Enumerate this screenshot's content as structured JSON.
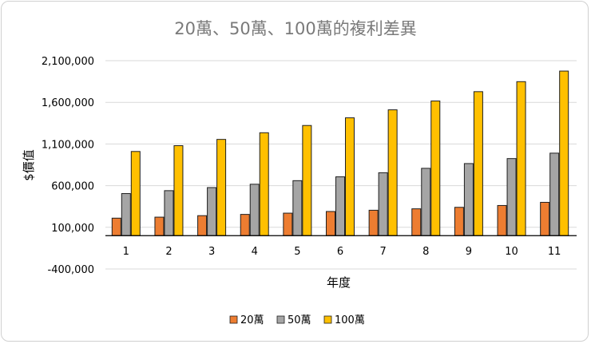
{
  "chart_data": {
    "type": "bar",
    "title": "20萬、50萬、100萬的複利差異",
    "xlabel": "年度",
    "ylabel": "$價值",
    "categories": [
      "1",
      "2",
      "3",
      "4",
      "5",
      "6",
      "7",
      "8",
      "9",
      "10",
      "11"
    ],
    "y_ticks": [
      "2,100,000",
      "1,600,000",
      "1,100,000",
      "600,000",
      "100,000",
      "-400,000"
    ],
    "ylim": [
      -400000,
      2100000
    ],
    "baseline": 0,
    "grid": true,
    "legend_position": "bottom",
    "series": [
      {
        "name": "20萬",
        "color": "#ED7D31",
        "values": [
          210000,
          222000,
          240000,
          255000,
          270000,
          290000,
          305000,
          322000,
          340000,
          362000,
          400000
        ]
      },
      {
        "name": "50萬",
        "color": "#A5A5A5",
        "values": [
          505000,
          540000,
          577000,
          617000,
          660000,
          706000,
          755000,
          808000,
          865000,
          925000,
          990000
        ]
      },
      {
        "name": "100萬",
        "color": "#FFC000",
        "values": [
          1010000,
          1080000,
          1155000,
          1235000,
          1322000,
          1414000,
          1510000,
          1616000,
          1728000,
          1848000,
          1975000
        ]
      }
    ]
  }
}
